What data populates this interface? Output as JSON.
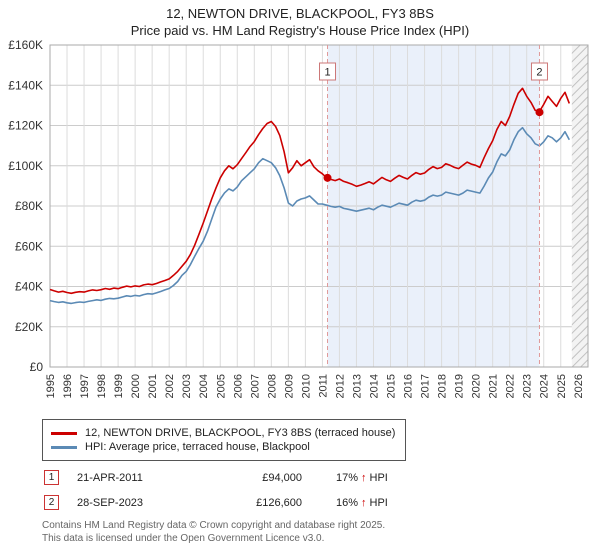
{
  "chart_data": {
    "type": "line",
    "title": "12, NEWTON DRIVE, BLACKPOOL, FY3 8BS",
    "subtitle": "Price paid vs. HM Land Registry's House Price Index (HPI)",
    "xlim": [
      1995,
      2026.6
    ],
    "ylim": [
      0,
      160
    ],
    "unit": "GBP thousands",
    "grid": true,
    "legend_position": "bottom",
    "x_start": 1995.0,
    "x_step": 0.25,
    "xticks": [
      1995,
      1996,
      1997,
      1998,
      1999,
      2000,
      2001,
      2002,
      2003,
      2004,
      2005,
      2006,
      2007,
      2008,
      2009,
      2010,
      2011,
      2012,
      2013,
      2014,
      2015,
      2016,
      2017,
      2018,
      2019,
      2020,
      2021,
      2022,
      2023,
      2024,
      2025,
      2026
    ],
    "yticks": [
      [
        0,
        "£0"
      ],
      [
        20,
        "£20K"
      ],
      [
        40,
        "£40K"
      ],
      [
        60,
        "£60K"
      ],
      [
        80,
        "£80K"
      ],
      [
        100,
        "£100K"
      ],
      [
        120,
        "£120K"
      ],
      [
        140,
        "£140K"
      ],
      [
        160,
        "£160K"
      ]
    ],
    "shaded_region": [
      2011.3,
      2023.75
    ],
    "hatch_region": [
      2025.65,
      2026.6
    ],
    "colors": {
      "shade": "#eaf0fa",
      "marker_line": "#e09999",
      "badge_border": "#cc7777"
    },
    "series": [
      {
        "name": "12, NEWTON DRIVE, BLACKPOOL, FY3 8BS (terraced house)",
        "color": "#cc0000",
        "values": [
          38.5,
          37.8,
          37.2,
          37.6,
          37.0,
          36.6,
          37.1,
          37.4,
          37.2,
          37.8,
          38.3,
          38.0,
          38.4,
          39.0,
          38.6,
          39.2,
          38.9,
          39.6,
          40.2,
          39.8,
          40.3,
          40.0,
          40.8,
          41.2,
          40.9,
          41.5,
          42.3,
          43.0,
          43.8,
          45.5,
          47.5,
          50.0,
          52.5,
          56.0,
          60.5,
          66.0,
          71.5,
          77.5,
          83.5,
          89.0,
          94.0,
          97.5,
          100.0,
          98.5,
          100.5,
          103.5,
          106.5,
          109.5,
          112.0,
          115.5,
          118.5,
          121.0,
          122.0,
          119.5,
          115.0,
          107.0,
          96.5,
          99.0,
          102.5,
          100.0,
          101.5,
          103.0,
          99.5,
          97.5,
          96.0,
          94.0,
          93.2,
          92.6,
          93.4,
          92.2,
          91.6,
          90.8,
          89.8,
          90.4,
          91.2,
          92.0,
          91.0,
          92.6,
          94.2,
          93.0,
          92.2,
          93.8,
          95.2,
          94.2,
          93.4,
          95.2,
          96.6,
          95.8,
          96.4,
          98.2,
          99.6,
          98.6,
          99.2,
          101.0,
          100.2,
          99.2,
          98.6,
          100.2,
          101.8,
          100.8,
          100.2,
          99.2,
          104.0,
          108.5,
          112.5,
          118.0,
          122.0,
          120.0,
          124.5,
          130.5,
          136.0,
          138.5,
          134.5,
          131.5,
          127.5,
          127.0,
          130.5,
          134.5,
          132.0,
          129.5,
          133.5,
          136.5,
          131.0
        ]
      },
      {
        "name": "HPI: Average price, terraced house, Blackpool",
        "color": "#5b8ab5",
        "values": [
          33.0,
          32.5,
          32.1,
          32.4,
          31.9,
          31.6,
          32.0,
          32.3,
          32.1,
          32.6,
          33.0,
          33.4,
          33.1,
          33.7,
          34.1,
          33.9,
          34.2,
          34.8,
          35.4,
          35.1,
          35.6,
          35.3,
          36.0,
          36.4,
          36.2,
          36.8,
          37.5,
          38.3,
          39.0,
          40.5,
          42.5,
          45.5,
          47.5,
          51.0,
          55.0,
          59.0,
          62.5,
          67.5,
          73.5,
          79.5,
          83.5,
          86.5,
          88.5,
          87.5,
          89.5,
          92.5,
          94.5,
          96.5,
          98.5,
          101.5,
          103.5,
          102.5,
          101.5,
          99.0,
          95.0,
          89.0,
          81.5,
          80.0,
          82.5,
          83.5,
          84.0,
          85.0,
          83.0,
          81.0,
          81.0,
          80.4,
          79.8,
          79.4,
          79.8,
          78.8,
          78.4,
          77.9,
          77.4,
          77.9,
          78.4,
          78.9,
          78.1,
          79.4,
          80.4,
          79.9,
          79.4,
          80.4,
          81.4,
          80.9,
          80.4,
          81.9,
          82.9,
          82.4,
          82.9,
          84.4,
          85.4,
          84.9,
          85.4,
          86.9,
          86.4,
          85.9,
          85.4,
          86.4,
          87.9,
          87.4,
          86.9,
          86.4,
          89.9,
          93.9,
          96.9,
          101.9,
          105.9,
          104.9,
          107.9,
          112.9,
          116.9,
          118.9,
          115.9,
          113.9,
          110.9,
          109.9,
          111.9,
          114.9,
          113.9,
          111.9,
          113.9,
          116.9,
          112.9
        ]
      }
    ],
    "markers": [
      {
        "num": "1",
        "x": 2011.3,
        "value": 94.0
      },
      {
        "num": "2",
        "x": 2023.75,
        "value": 126.6
      }
    ]
  },
  "sales": [
    {
      "num": "1",
      "date": "21-APR-2011",
      "price": "£94,000",
      "hpi_pct": "17%",
      "arrow": "↑",
      "hpi_label": "HPI"
    },
    {
      "num": "2",
      "date": "28-SEP-2023",
      "price": "£126,600",
      "hpi_pct": "16%",
      "arrow": "↑",
      "hpi_label": "HPI"
    }
  ],
  "footer": {
    "line1": "Contains HM Land Registry data © Crown copyright and database right 2025.",
    "line2": "This data is licensed under the Open Government Licence v3.0."
  }
}
